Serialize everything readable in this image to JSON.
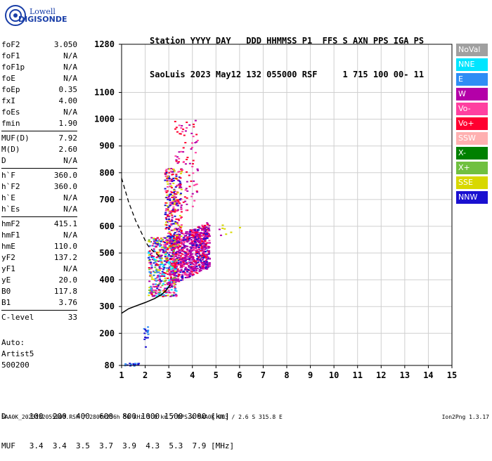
{
  "logo": {
    "line1": "Lowell",
    "line2": "DIGISONDE"
  },
  "header": {
    "line1": "Station YYYY DAY   DDD HHMMSS P1  FFS S AXN PPS IGA PS",
    "line2": "SaoLuis 2023 May12 132 055000 RSF     1 715 100 00- 11"
  },
  "params": [
    {
      "k": "foF2",
      "v": "3.050"
    },
    {
      "k": "foF1",
      "v": "N/A"
    },
    {
      "k": "foF1p",
      "v": "N/A"
    },
    {
      "k": "foE",
      "v": "N/A"
    },
    {
      "k": "foEp",
      "v": "0.35"
    },
    {
      "k": "fxI",
      "v": "4.00"
    },
    {
      "k": "foEs",
      "v": "N/A"
    },
    {
      "k": "fmin",
      "v": "1.90"
    },
    {
      "k": "MUF(D)",
      "v": "7.92"
    },
    {
      "k": "M(D)",
      "v": "2.60"
    },
    {
      "k": "D",
      "v": "N/A"
    },
    {
      "k": "h`F",
      "v": "360.0"
    },
    {
      "k": "h`F2",
      "v": "360.0"
    },
    {
      "k": "h`E",
      "v": "N/A"
    },
    {
      "k": "h`Es",
      "v": "N/A"
    },
    {
      "k": "hmF2",
      "v": "415.1"
    },
    {
      "k": "hmF1",
      "v": "N/A"
    },
    {
      "k": "hmE",
      "v": "110.0"
    },
    {
      "k": "yF2",
      "v": "137.2"
    },
    {
      "k": "yF1",
      "v": "N/A"
    },
    {
      "k": "yE",
      "v": "20.0"
    },
    {
      "k": "B0",
      "v": "117.8"
    },
    {
      "k": "B1",
      "v": "3.76"
    },
    {
      "k": "C-level",
      "v": "33"
    }
  ],
  "auto": {
    "l1": "Auto:",
    "l2": "Artist5",
    "l3": "500200"
  },
  "legend": [
    {
      "label": "NoVal",
      "color": "#a0a0a0"
    },
    {
      "label": "NNE",
      "color": "#00e5ff"
    },
    {
      "label": "E",
      "color": "#2f8df5"
    },
    {
      "label": "W",
      "color": "#b400a8"
    },
    {
      "label": "Vo-",
      "color": "#ff40a0"
    },
    {
      "label": "Vo+",
      "color": "#ff0030"
    },
    {
      "label": "SSW",
      "color": "#ffb0b0"
    },
    {
      "label": "X-",
      "color": "#008000"
    },
    {
      "label": "X+",
      "color": "#70c040"
    },
    {
      "label": "SSE",
      "color": "#d8d800"
    },
    {
      "label": "NNW",
      "color": "#1a10d0"
    }
  ],
  "muf_table": {
    "row1": "D     100  200  400  600  800 1000 1500 3000 [km]",
    "row2": "MUF   3.4  3.4  3.5  3.7  3.9  4.3  5.3  7.9 [MHz]"
  },
  "footer": {
    "left": "SAA0K_2023132055000.RSF / 280fx256h 50 kHz 5.0 km / DPS-4 SAA0K 903 / 2.6 S 315.8 E",
    "right": "Ion2Png 1.3.17"
  },
  "chart_data": {
    "type": "scatter",
    "xlabel": "",
    "ylabel": "",
    "xlim": [
      1,
      15
    ],
    "ylim": [
      80,
      1280
    ],
    "x_ticks": [
      1,
      2,
      3,
      4,
      5,
      6,
      7,
      8,
      9,
      10,
      11,
      12,
      13,
      14,
      15
    ],
    "y_ticks": [
      80,
      200,
      300,
      400,
      500,
      600,
      700,
      800,
      900,
      1000,
      1100,
      1280
    ],
    "grid": true,
    "profile_curve": {
      "name": "",
      "x": [
        1.0,
        1.3,
        1.6,
        2.0,
        2.4,
        2.7,
        2.9,
        3.05
      ],
      "y": [
        275,
        292,
        302,
        315,
        330,
        345,
        362,
        380
      ]
    },
    "muf_curve": {
      "name": "",
      "x": [
        1.0,
        1.3,
        1.6,
        1.9,
        2.1,
        2.3,
        2.5,
        2.7
      ],
      "y": [
        780,
        690,
        620,
        565,
        530,
        510,
        495,
        480
      ]
    },
    "echo_regions": [
      {
        "color_key": "W",
        "x_range": [
          2.9,
          4.5
        ],
        "y_range": [
          380,
          620
        ],
        "note": ""
      },
      {
        "color_key": "NNW",
        "x_range": [
          2.0,
          3.3
        ],
        "y_range": [
          340,
          560
        ]
      },
      {
        "color_key": "Vo-",
        "x_range": [
          2.8,
          3.6
        ],
        "y_range": [
          420,
          900
        ]
      }
    ]
  }
}
